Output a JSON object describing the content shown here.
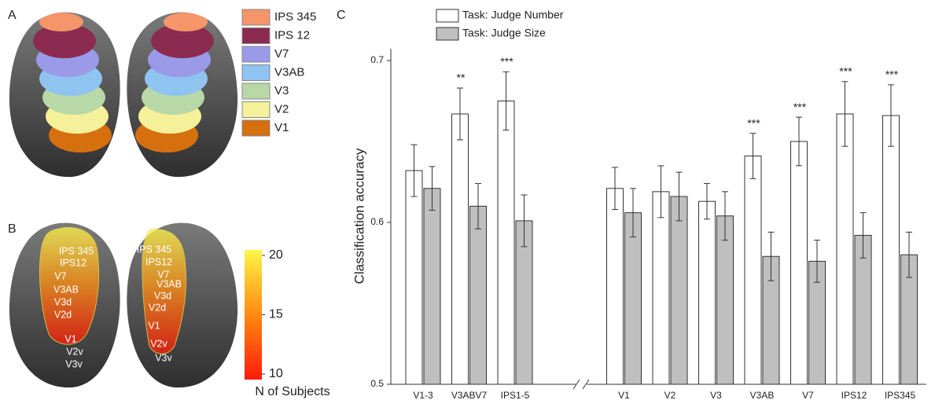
{
  "panel_labels": {
    "a": "A",
    "b": "B",
    "c": "C"
  },
  "panel_a": {
    "regions": [
      {
        "name": "IPS 345",
        "color": "#f4956a"
      },
      {
        "name": "IPS 12",
        "color": "#8b2b4f"
      },
      {
        "name": "V7",
        "color": "#9a9ae8"
      },
      {
        "name": "V3AB",
        "color": "#8fc3f0"
      },
      {
        "name": "V3",
        "color": "#b9d8a8"
      },
      {
        "name": "V2",
        "color": "#f5f09a"
      },
      {
        "name": "V1",
        "color": "#d6700f"
      }
    ]
  },
  "panel_b": {
    "left_labels": [
      "IPS 345",
      "IPS12",
      "V7",
      "V3AB",
      "V3d",
      "V2d",
      "V1",
      "V2v",
      "V3v"
    ],
    "right_labels": [
      "IPS 345",
      "IPS12",
      "V7",
      "V3AB",
      "V3d",
      "V2d",
      "V1",
      "V2v",
      "V3v"
    ],
    "colorbar": {
      "label": "N of Subjects",
      "clim": [
        10,
        20
      ],
      "ticks": [
        10,
        15,
        20
      ],
      "colors": [
        "#ff1a0a",
        "#ff8a10",
        "#fff64a"
      ]
    }
  },
  "chart_data": {
    "type": "bar",
    "ylabel": "Classification accuracy",
    "categories": [
      "V1-3",
      "V3ABV7",
      "IPS1-5",
      "V1",
      "V2",
      "V3",
      "V3AB",
      "V7",
      "IPS12",
      "IPS345"
    ],
    "series": [
      {
        "name": "Task: Judge Number",
        "color": "#ffffff",
        "values": [
          0.632,
          0.667,
          0.675,
          0.621,
          0.619,
          0.613,
          0.641,
          0.65,
          0.667,
          0.666
        ],
        "errors": [
          0.016,
          0.016,
          0.018,
          0.013,
          0.016,
          0.011,
          0.014,
          0.015,
          0.02,
          0.019
        ]
      },
      {
        "name": "Task: Judge Size",
        "color": "#bfbfbf",
        "values": [
          0.621,
          0.61,
          0.601,
          0.606,
          0.616,
          0.604,
          0.579,
          0.576,
          0.592,
          0.58
        ],
        "errors": [
          0.0135,
          0.014,
          0.016,
          0.015,
          0.015,
          0.015,
          0.015,
          0.013,
          0.014,
          0.014
        ]
      }
    ],
    "annotations": [
      null,
      "**",
      "***",
      null,
      null,
      null,
      "***",
      "***",
      "***",
      "***"
    ],
    "ylim": [
      0.5,
      0.7
    ],
    "yticks": [
      0.5,
      0.6,
      0.7
    ]
  }
}
